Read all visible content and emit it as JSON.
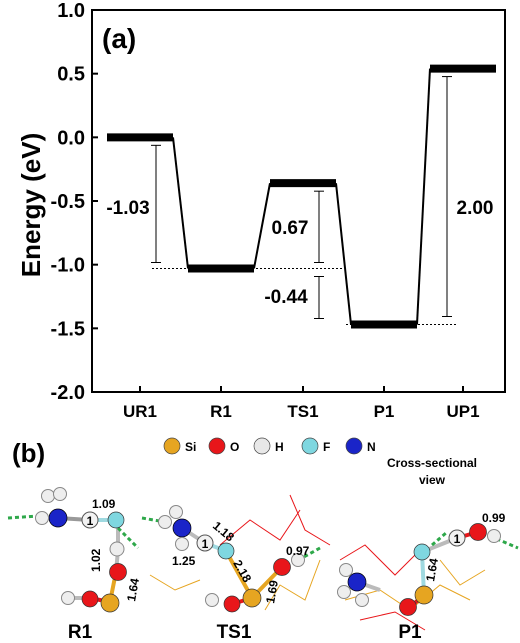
{
  "panel_a_label": "(a)",
  "panel_b_label": "(b)",
  "chart_data": {
    "type": "line",
    "ylabel": "Energy (eV)",
    "xlabel": "",
    "ylim": [
      -2.0,
      1.0
    ],
    "yticks": [
      "1.0",
      "0.5",
      "0.0",
      "-0.5",
      "-1.0",
      "-1.5",
      "-2.0"
    ],
    "categories": [
      "UR1",
      "R1",
      "TS1",
      "P1",
      "UP1"
    ],
    "values": [
      0.0,
      -1.03,
      -0.36,
      -1.47,
      0.54
    ],
    "differences": [
      {
        "label": "-1.03"
      },
      {
        "label": "0.67"
      },
      {
        "label": "-0.44"
      },
      {
        "label": "2.00"
      }
    ]
  },
  "legend_b": {
    "items": [
      {
        "name": "Si",
        "color": "#e6a521"
      },
      {
        "name": "O",
        "color": "#e8161a"
      },
      {
        "name": "H",
        "color": "#e8e8e8"
      },
      {
        "name": "F",
        "color": "#7fd7e0"
      },
      {
        "name": "N",
        "color": "#1a24c8"
      }
    ]
  },
  "cross_section_note": "Cross-sectional view",
  "structures": [
    {
      "name": "R1",
      "bond_labels": [
        "1.09",
        "1.02",
        "1.64"
      ],
      "atom_marker": "1"
    },
    {
      "name": "TS1",
      "bond_labels": [
        "1.18",
        "1.25",
        "2.18",
        "0.97",
        "1.69"
      ],
      "atom_marker": "1"
    },
    {
      "name": "P1",
      "bond_labels": [
        "0.99",
        "1.64"
      ],
      "atom_marker": "1"
    }
  ]
}
